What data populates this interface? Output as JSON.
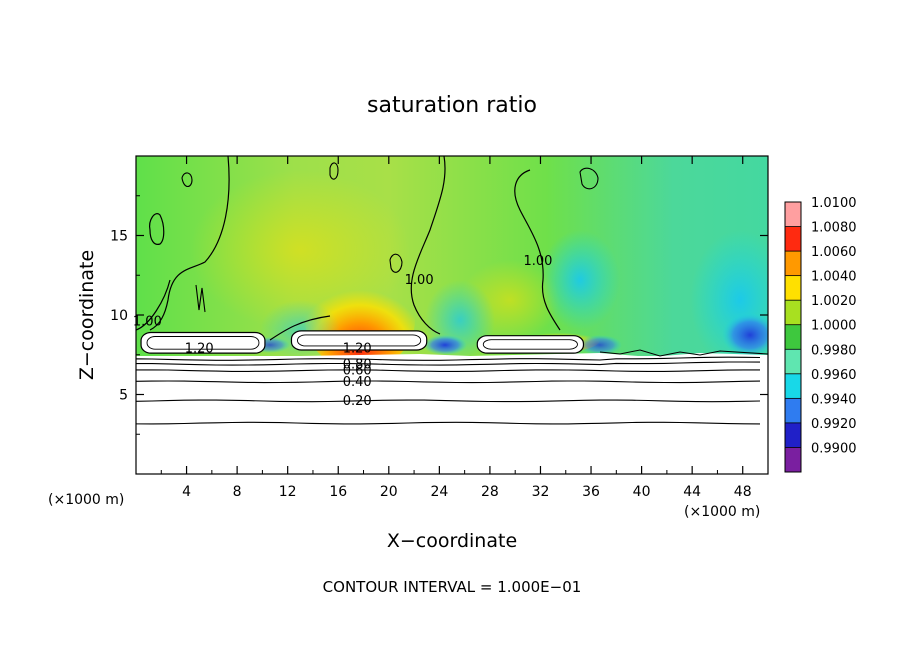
{
  "chart_data": {
    "type": "heatmap",
    "title": "saturation ratio",
    "xlabel": "X−coordinate",
    "ylabel": "Z−coordinate",
    "x_unit_left": "(×1000 m)",
    "x_unit_right": "(×1000 m)",
    "footer": "CONTOUR INTERVAL = 1.000E−01",
    "xlim": [
      0,
      50
    ],
    "ylim": [
      0,
      20
    ],
    "x_ticks": [
      4,
      8,
      12,
      16,
      20,
      24,
      28,
      32,
      36,
      40,
      44,
      48
    ],
    "y_ticks": [
      5,
      10,
      15
    ],
    "colorbar": {
      "levels": [
        0.99,
        0.992,
        0.994,
        0.996,
        0.998,
        1.0,
        1.002,
        1.004,
        1.006,
        1.008,
        1.01
      ],
      "labels": [
        "1.0100",
        "1.0080",
        "1.0060",
        "1.0040",
        "1.0020",
        "1.0000",
        "0.9980",
        "0.9960",
        "0.9940",
        "0.9920",
        "0.9900"
      ],
      "colors": [
        "#7a1fa0",
        "#2020c8",
        "#2f7cf0",
        "#18d8e8",
        "#5fe6b0",
        "#3ec83e",
        "#a8e020",
        "#ffe000",
        "#ff9900",
        "#ff2a10",
        "#ff9fa0"
      ]
    },
    "contour_labels": [
      {
        "text": "1.00",
        "x": 0.9,
        "z": 9.6
      },
      {
        "text": "1.20",
        "x": 5,
        "z": 7.9
      },
      {
        "text": "1.20",
        "x": 17.5,
        "z": 7.9
      },
      {
        "text": "0.80",
        "x": 17.5,
        "z": 6.9
      },
      {
        "text": "0.60",
        "x": 17.5,
        "z": 6.5
      },
      {
        "text": "0.40",
        "x": 17.5,
        "z": 5.8
      },
      {
        "text": "0.20",
        "x": 17.5,
        "z": 4.6
      },
      {
        "text": "1.00",
        "x": 22.4,
        "z": 12.2
      },
      {
        "text": "1.00",
        "x": 31.8,
        "z": 13.4
      }
    ],
    "contour_lines_z": [
      3.2,
      4.6,
      5.8,
      6.5,
      6.9,
      7.2
    ],
    "cloud_tops": [
      {
        "x0": 0.4,
        "x1": 10.2,
        "z_bottom": 7.6,
        "z_top": 8.9
      },
      {
        "x0": 12.3,
        "x1": 23.0,
        "z_bottom": 7.8,
        "z_top": 9.0
      },
      {
        "x0": 27.0,
        "x1": 35.4,
        "z_bottom": 7.6,
        "z_top": 8.7
      }
    ]
  }
}
